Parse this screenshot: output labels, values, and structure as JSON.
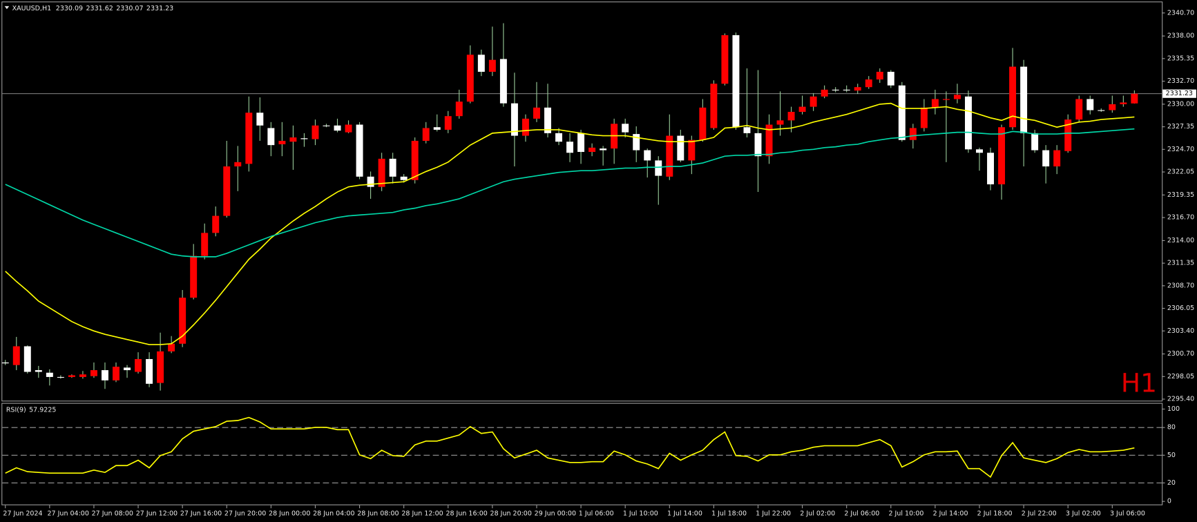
{
  "chart_data": [
    {
      "type": "candlestick",
      "symbol": "XAUUSD,H1",
      "watermark": "H1",
      "categories": [
        "27 Jun 2024",
        null,
        null,
        null,
        "27 Jun 04:00",
        null,
        null,
        null,
        "27 Jun 08:00",
        null,
        null,
        null,
        "27 Jun 12:00",
        null,
        null,
        null,
        "27 Jun 16:00",
        null,
        null,
        null,
        "27 Jun 20:00",
        null,
        null,
        null,
        "28 Jun 00:00",
        null,
        null,
        null,
        "28 Jun 04:00",
        null,
        null,
        null,
        "28 Jun 08:00",
        null,
        null,
        null,
        "28 Jun 12:00",
        null,
        null,
        null,
        "28 Jun 16:00",
        null,
        null,
        null,
        "28 Jun 20:00",
        null,
        null,
        null,
        "29 Jun 00:00",
        null,
        null,
        null,
        "1 Jul 06:00",
        null,
        null,
        null,
        "1 Jul 10:00",
        null,
        null,
        null,
        "1 Jul 14:00",
        null,
        null,
        null,
        "1 Jul 18:00",
        null,
        null,
        null,
        "1 Jul 22:00",
        null,
        null,
        null,
        "2 Jul 02:00",
        null,
        null,
        null,
        "2 Jul 06:00",
        null,
        null,
        null,
        "2 Jul 10:00",
        null,
        null,
        null,
        "2 Jul 14:00",
        null,
        null,
        null,
        "2 Jul 18:00",
        null,
        null,
        null,
        "2 Jul 22:00",
        null,
        null,
        null,
        "3 Jul 02:00",
        null,
        null,
        null,
        "3 Jul 06:00",
        null,
        null
      ],
      "open": [
        2299.7,
        2299.4,
        2301.6,
        2298.8,
        2298.5,
        2298.0,
        2298.0,
        2298.0,
        2298.1,
        2298.8,
        2297.6,
        2299.1,
        2298.6,
        2300.1,
        2297.3,
        2301.0,
        2301.9,
        2307.3,
        2312.2,
        2314.9,
        2316.9,
        2322.7,
        2323.0,
        2329.0,
        2327.2,
        2325.3,
        2325.6,
        2326.0,
        2325.9,
        2327.5,
        2327.5,
        2326.7,
        2327.6,
        2321.5,
        2320.3,
        2323.6,
        2321.5,
        2321.1,
        2325.7,
        2327.3,
        2327.0,
        2328.6,
        2330.3,
        2335.8,
        2333.8,
        2335.3,
        2330.1,
        2326.3,
        2328.3,
        2329.6,
        2326.6,
        2325.6,
        2326.6,
        2324.4,
        2324.8,
        2324.8,
        2327.7,
        2326.5,
        2324.6,
        2323.4,
        2321.5,
        2326.3,
        2323.4,
        2325.8,
        2327.2,
        2332.4,
        2338.1,
        2327.3,
        2326.6,
        2323.9,
        2327.6,
        2328.1,
        2329.1,
        2329.7,
        2330.9,
        2331.7,
        2331.7,
        2331.6,
        2332.0,
        2332.9,
        2333.8,
        2332.2,
        2325.8,
        2327.2,
        2329.6,
        2330.5,
        2330.6,
        2330.9,
        2324.7,
        2324.3,
        2320.6,
        2327.3,
        2334.4,
        2326.6,
        2324.6,
        2322.7,
        2324.5,
        2328.2,
        2330.6,
        2329.3,
        2329.3,
        2330.0,
        2330.09
      ],
      "high": [
        2300.0,
        2302.7,
        2301.7,
        2299.3,
        2298.9,
        2298.2,
        2298.3,
        2298.7,
        2299.7,
        2299.7,
        2299.7,
        2299.4,
        2300.9,
        2300.9,
        2303.2,
        2302.8,
        2308.2,
        2313.6,
        2316.0,
        2318.0,
        2325.7,
        2325.1,
        2330.9,
        2330.8,
        2327.9,
        2327.9,
        2327.5,
        2326.6,
        2328.2,
        2327.7,
        2328.3,
        2328.1,
        2327.9,
        2322.1,
        2324.3,
        2324.3,
        2321.8,
        2326.1,
        2327.9,
        2328.8,
        2329.2,
        2331.7,
        2336.9,
        2336.4,
        2339.1,
        2339.5,
        2333.7,
        2328.8,
        2332.6,
        2332.4,
        2327.2,
        2326.6,
        2327.0,
        2325.4,
        2325.1,
        2328.3,
        2328.3,
        2327.4,
        2324.8,
        2323.9,
        2328.8,
        2327.0,
        2326.3,
        2330.6,
        2332.8,
        2338.3,
        2338.4,
        2334.2,
        2334.0,
        2328.8,
        2331.5,
        2329.7,
        2331.0,
        2331.3,
        2332.2,
        2332.0,
        2332.2,
        2332.4,
        2333.3,
        2334.2,
        2334.0,
        2332.6,
        2327.7,
        2330.6,
        2331.7,
        2331.5,
        2332.4,
        2331.6,
        2324.9,
        2324.9,
        2327.6,
        2336.6,
        2335.2,
        2327.0,
        2325.2,
        2325.2,
        2328.8,
        2331.0,
        2331.0,
        2329.5,
        2331.0,
        2331.0,
        2331.62
      ],
      "low": [
        2299.4,
        2298.8,
        2298.4,
        2297.9,
        2297.0,
        2297.8,
        2297.9,
        2297.8,
        2297.9,
        2296.6,
        2297.4,
        2297.9,
        2298.4,
        2296.8,
        2296.4,
        2300.8,
        2301.5,
        2307.1,
        2311.8,
        2314.5,
        2316.7,
        2319.8,
        2322.1,
        2325.7,
        2323.9,
        2323.9,
        2322.3,
        2325.0,
        2325.2,
        2327.3,
        2326.7,
        2326.6,
        2321.2,
        2318.9,
        2319.8,
        2320.7,
        2320.8,
        2320.7,
        2325.4,
        2326.8,
        2326.6,
        2328.3,
        2330.1,
        2333.3,
        2333.3,
        2329.7,
        2322.7,
        2325.6,
        2327.9,
        2326.1,
        2325.2,
        2323.2,
        2323.0,
        2323.9,
        2322.8,
        2323.0,
        2326.1,
        2323.2,
        2321.4,
        2318.2,
        2321.1,
        2323.2,
        2321.8,
        2325.6,
        2327.0,
        2332.2,
        2327.0,
        2326.1,
        2319.7,
        2323.0,
        2326.3,
        2326.7,
        2328.8,
        2329.2,
        2330.7,
        2331.4,
        2331.4,
        2331.2,
        2331.8,
        2332.5,
        2331.9,
        2325.6,
        2324.8,
        2326.8,
        2328.8,
        2323.2,
        2330.1,
        2324.3,
        2322.2,
        2319.9,
        2318.8,
        2327.0,
        2322.7,
        2324.3,
        2320.7,
        2321.8,
        2324.3,
        2327.9,
        2328.8,
        2329.1,
        2329.0,
        2329.7,
        2330.07
      ],
      "close": [
        2299.6,
        2301.6,
        2298.6,
        2298.6,
        2298.0,
        2298.0,
        2298.2,
        2298.3,
        2298.8,
        2297.6,
        2299.2,
        2298.8,
        2300.1,
        2297.2,
        2301.0,
        2301.9,
        2307.3,
        2312.2,
        2314.9,
        2316.9,
        2322.7,
        2323.2,
        2329.0,
        2327.5,
        2325.2,
        2325.7,
        2326.1,
        2325.9,
        2327.5,
        2327.5,
        2326.9,
        2327.6,
        2321.5,
        2320.3,
        2323.6,
        2321.5,
        2321.1,
        2325.7,
        2327.2,
        2327.0,
        2328.6,
        2330.3,
        2335.8,
        2333.8,
        2335.2,
        2330.1,
        2326.3,
        2328.3,
        2329.6,
        2326.6,
        2325.6,
        2324.3,
        2324.4,
        2324.9,
        2324.6,
        2327.7,
        2326.7,
        2324.6,
        2323.4,
        2321.6,
        2326.3,
        2323.4,
        2325.8,
        2329.6,
        2332.4,
        2338.1,
        2327.3,
        2326.6,
        2323.9,
        2327.6,
        2328.1,
        2329.1,
        2329.7,
        2330.9,
        2331.7,
        2331.7,
        2331.7,
        2332.0,
        2332.9,
        2333.8,
        2332.2,
        2325.8,
        2327.2,
        2329.6,
        2330.6,
        2330.6,
        2331.1,
        2324.7,
        2324.3,
        2320.6,
        2327.3,
        2334.4,
        2326.6,
        2324.6,
        2322.7,
        2324.6,
        2328.2,
        2330.6,
        2329.3,
        2329.3,
        2330.0,
        2330.2,
        2331.23
      ],
      "up_color": "#ff0000",
      "down_color": "#ffffff",
      "wick_color": "#9acd9a",
      "series": [
        {
          "color": "#ffff00",
          "values": [
            2310.4,
            2309.2,
            2308.1,
            2306.9,
            2306.1,
            2305.3,
            2304.5,
            2303.9,
            2303.4,
            2303.0,
            2302.7,
            2302.4,
            2302.1,
            2301.8,
            2301.8,
            2301.9,
            2302.8,
            2304.1,
            2305.5,
            2307.0,
            2308.6,
            2310.2,
            2311.8,
            2313.0,
            2314.3,
            2315.3,
            2316.3,
            2317.2,
            2318.0,
            2318.9,
            2319.7,
            2320.3,
            2320.5,
            2320.6,
            2320.7,
            2320.8,
            2320.9,
            2321.5,
            2322.1,
            2322.6,
            2323.2,
            2324.2,
            2325.2,
            2325.9,
            2326.6,
            2326.7,
            2326.8,
            2326.9,
            2327.0,
            2327.0,
            2327.0,
            2326.8,
            2326.6,
            2326.4,
            2326.3,
            2326.3,
            2326.3,
            2326.1,
            2325.9,
            2325.7,
            2325.6,
            2325.6,
            2325.6,
            2325.8,
            2326.1,
            2327.2,
            2327.3,
            2327.5,
            2327.2,
            2327.0,
            2327.1,
            2327.2,
            2327.5,
            2327.9,
            2328.2,
            2328.5,
            2328.8,
            2329.2,
            2329.6,
            2330.0,
            2330.1,
            2329.5,
            2329.5,
            2329.5,
            2329.6,
            2329.7,
            2329.4,
            2329.2,
            2328.8,
            2328.4,
            2328.1,
            2328.6,
            2328.3,
            2328.1,
            2327.7,
            2327.3,
            2327.6,
            2327.9,
            2328.0,
            2328.2,
            2328.3,
            2328.4,
            2328.5
          ]
        },
        {
          "color": "#00d8a8",
          "values": [
            2320.6,
            2320.0,
            2319.4,
            2318.8,
            2318.2,
            2317.6,
            2317.0,
            2316.4,
            2315.9,
            2315.4,
            2314.9,
            2314.4,
            2313.9,
            2313.4,
            2312.9,
            2312.4,
            2312.2,
            2312.1,
            2312.1,
            2312.1,
            2312.5,
            2313.0,
            2313.5,
            2314.0,
            2314.5,
            2314.9,
            2315.3,
            2315.7,
            2316.1,
            2316.4,
            2316.7,
            2316.9,
            2317.0,
            2317.1,
            2317.2,
            2317.3,
            2317.6,
            2317.8,
            2318.1,
            2318.3,
            2318.6,
            2318.9,
            2319.4,
            2319.9,
            2320.4,
            2320.9,
            2321.2,
            2321.4,
            2321.6,
            2321.8,
            2322.0,
            2322.1,
            2322.2,
            2322.2,
            2322.3,
            2322.4,
            2322.5,
            2322.5,
            2322.6,
            2322.6,
            2322.7,
            2322.7,
            2322.9,
            2323.1,
            2323.5,
            2323.9,
            2324.0,
            2324.0,
            2324.1,
            2324.1,
            2324.3,
            2324.4,
            2324.6,
            2324.7,
            2324.9,
            2325.0,
            2325.2,
            2325.3,
            2325.6,
            2325.8,
            2326.0,
            2326.1,
            2326.3,
            2326.4,
            2326.5,
            2326.6,
            2326.7,
            2326.7,
            2326.6,
            2326.5,
            2326.5,
            2326.8,
            2326.7,
            2326.5,
            2326.5,
            2326.5,
            2326.6,
            2326.6,
            2326.7,
            2326.8,
            2326.9,
            2327.0,
            2327.1
          ]
        }
      ],
      "ylim": [
        2295.4,
        2340.7
      ],
      "yticks": [
        {
          "value": 2295.4,
          "label": "2295.40"
        },
        {
          "value": 2298.05,
          "label": "2298.05"
        },
        {
          "value": 2300.7,
          "label": "2300.70"
        },
        {
          "value": 2303.4,
          "label": "2303.40"
        },
        {
          "value": 2306.05,
          "label": "2306.05"
        },
        {
          "value": 2308.7,
          "label": "2308.70"
        },
        {
          "value": 2311.35,
          "label": "2311.35"
        },
        {
          "value": 2314.0,
          "label": "2314.00"
        },
        {
          "value": 2316.7,
          "label": "2316.70"
        },
        {
          "value": 2319.35,
          "label": "2319.35"
        },
        {
          "value": 2322.05,
          "label": "2322.05"
        },
        {
          "value": 2324.7,
          "label": "2324.70"
        },
        {
          "value": 2327.35,
          "label": "2327.35"
        },
        {
          "value": 2330.0,
          "label": "2330.00"
        },
        {
          "value": 2332.7,
          "label": "2332.70"
        },
        {
          "value": 2335.35,
          "label": "2335.35"
        },
        {
          "value": 2338.0,
          "label": "2338.00"
        },
        {
          "value": 2340.7,
          "label": "2340.70"
        }
      ]
    },
    {
      "type": "line",
      "title": "RSI(9)",
      "color": "#ffff00",
      "values": [
        30.6,
        36.4,
        32.2,
        31.4,
        30.6,
        30.6,
        30.6,
        30.6,
        33.9,
        31.4,
        38.8,
        38.8,
        44.6,
        36.4,
        49.6,
        53.7,
        67.8,
        76.0,
        78.5,
        81.0,
        86.8,
        87.6,
        90.9,
        86.0,
        78.5,
        78.5,
        78.5,
        78.5,
        80.2,
        80.2,
        77.7,
        77.7,
        50.4,
        46.3,
        55.4,
        49.6,
        48.8,
        61.2,
        65.3,
        65.3,
        68.6,
        71.9,
        81.0,
        73.6,
        75.2,
        57.0,
        47.1,
        51.2,
        55.4,
        47.1,
        44.6,
        42.1,
        42.1,
        43.0,
        43.0,
        54.5,
        50.4,
        43.8,
        40.5,
        35.5,
        52.1,
        44.6,
        50.4,
        55.4,
        66.9,
        75.2,
        49.6,
        48.8,
        43.8,
        50.4,
        50.4,
        53.7,
        55.4,
        58.7,
        60.3,
        60.3,
        60.3,
        60.3,
        63.6,
        66.9,
        60.3,
        37.2,
        43.0,
        50.4,
        53.7,
        53.7,
        54.5,
        35.5,
        35.5,
        26.4,
        49.6,
        63.6,
        47.1,
        44.6,
        42.1,
        46.3,
        52.9,
        56.2,
        53.7,
        53.7,
        54.5,
        55.4,
        57.9225
      ],
      "ylim": [
        0,
        100
      ],
      "yticks": [
        0,
        20,
        50,
        80,
        100
      ]
    }
  ]
}
